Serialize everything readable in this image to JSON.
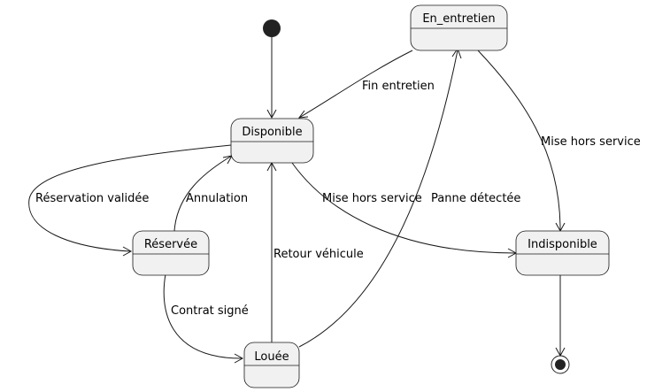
{
  "diagram": {
    "type": "state-machine",
    "colors": {
      "state_fill": "#f1f1f1",
      "stroke": "#181818",
      "pseudo_fill": "#222222"
    },
    "initial_state_target": "Disponible",
    "final_state_source": "Indisponible",
    "states": [
      {
        "id": "en_entretien",
        "label": "En_entretien"
      },
      {
        "id": "disponible",
        "label": "Disponible"
      },
      {
        "id": "reservee",
        "label": "Réservée"
      },
      {
        "id": "indisponible",
        "label": "Indisponible"
      },
      {
        "id": "louee",
        "label": "Louée"
      }
    ],
    "transitions": [
      {
        "from": "Disponible",
        "to": "Réservée",
        "label": "Réservation validée"
      },
      {
        "from": "Réservée",
        "to": "Disponible",
        "label": "Annulation"
      },
      {
        "from": "Réservée",
        "to": "Louée",
        "label": "Contrat signé"
      },
      {
        "from": "Louée",
        "to": "Disponible",
        "label": "Retour véhicule"
      },
      {
        "from": "Louée",
        "to": "En_entretien",
        "label": "Panne détectée"
      },
      {
        "from": "En_entretien",
        "to": "Disponible",
        "label": "Fin entretien"
      },
      {
        "from": "Disponible",
        "to": "Indisponible",
        "label": "Mise hors service"
      },
      {
        "from": "En_entretien",
        "to": "Indisponible",
        "label": "Mise hors service"
      }
    ]
  }
}
